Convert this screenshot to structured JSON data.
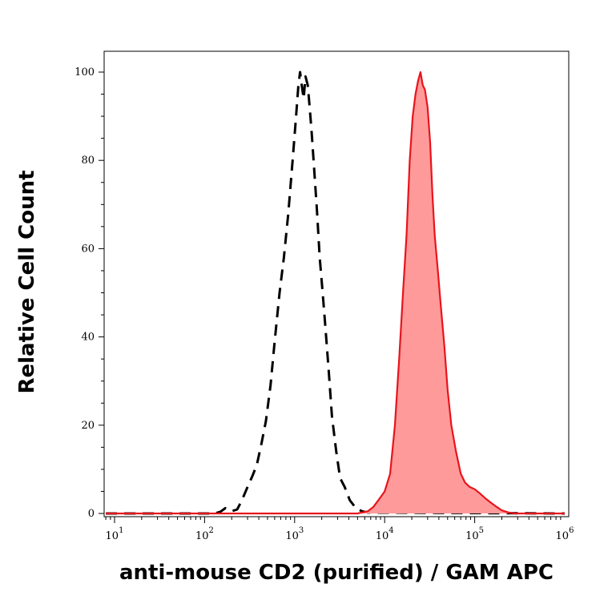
{
  "chart_data": {
    "type": "area",
    "xlabel": "anti-mouse CD2 (purified) / GAM APC",
    "ylabel": "Relative Cell Count",
    "x_scale": "log",
    "xlim": [
      8,
      1000000
    ],
    "ylim": [
      0,
      100
    ],
    "x_ticks": [
      {
        "base": "10",
        "exp": "1"
      },
      {
        "base": "10",
        "exp": "2"
      },
      {
        "base": "10",
        "exp": "3"
      },
      {
        "base": "10",
        "exp": "4"
      },
      {
        "base": "10",
        "exp": "5"
      },
      {
        "base": "10",
        "exp": "6"
      }
    ],
    "y_ticks": [
      "0",
      "20",
      "40",
      "60",
      "80",
      "100"
    ],
    "series": [
      {
        "style": "dashed",
        "color": "#000000",
        "fill": false,
        "points": [
          [
            8,
            0
          ],
          [
            130,
            0
          ],
          [
            150,
            0.4
          ],
          [
            170,
            1.2
          ],
          [
            200,
            0.5
          ],
          [
            230,
            0.9
          ],
          [
            260,
            3
          ],
          [
            300,
            6
          ],
          [
            340,
            8.5
          ],
          [
            380,
            11
          ],
          [
            430,
            16
          ],
          [
            480,
            21
          ],
          [
            540,
            29
          ],
          [
            600,
            39
          ],
          [
            680,
            50
          ],
          [
            760,
            58
          ],
          [
            850,
            68
          ],
          [
            950,
            80
          ],
          [
            1030,
            89
          ],
          [
            1100,
            97
          ],
          [
            1150,
            100
          ],
          [
            1200,
            97
          ],
          [
            1260,
            94
          ],
          [
            1320,
            99
          ],
          [
            1400,
            97
          ],
          [
            1470,
            92
          ],
          [
            1550,
            86
          ],
          [
            1650,
            78
          ],
          [
            1780,
            68
          ],
          [
            1900,
            58
          ],
          [
            2050,
            50
          ],
          [
            2200,
            42
          ],
          [
            2400,
            32
          ],
          [
            2600,
            22
          ],
          [
            2900,
            14
          ],
          [
            3200,
            8
          ],
          [
            3600,
            6
          ],
          [
            4100,
            3
          ],
          [
            4800,
            1.2
          ],
          [
            5600,
            0.5
          ],
          [
            6500,
            0.2
          ],
          [
            1000000,
            0
          ]
        ]
      },
      {
        "style": "solid",
        "color": "#e8141c",
        "fill": true,
        "fill_color": "#ff9a9a",
        "points": [
          [
            8,
            0
          ],
          [
            5000,
            0
          ],
          [
            6500,
            0.5
          ],
          [
            7500,
            1.5
          ],
          [
            8500,
            3
          ],
          [
            10000,
            5
          ],
          [
            11500,
            9
          ],
          [
            13000,
            20
          ],
          [
            14500,
            35
          ],
          [
            16000,
            50
          ],
          [
            17500,
            63
          ],
          [
            19000,
            80
          ],
          [
            20500,
            90
          ],
          [
            22000,
            95
          ],
          [
            23500,
            98
          ],
          [
            25000,
            100
          ],
          [
            26500,
            97
          ],
          [
            28000,
            96
          ],
          [
            30000,
            92
          ],
          [
            32000,
            84
          ],
          [
            34000,
            72
          ],
          [
            36000,
            63
          ],
          [
            39000,
            55
          ],
          [
            42000,
            47
          ],
          [
            46000,
            38
          ],
          [
            50000,
            28
          ],
          [
            55000,
            20
          ],
          [
            62000,
            14
          ],
          [
            70000,
            9
          ],
          [
            78000,
            7
          ],
          [
            88000,
            6
          ],
          [
            100000,
            5.5
          ],
          [
            115000,
            4.5
          ],
          [
            130000,
            3.5
          ],
          [
            150000,
            2.5
          ],
          [
            175000,
            1.5
          ],
          [
            200000,
            0.7
          ],
          [
            240000,
            0.2
          ],
          [
            280000,
            0
          ],
          [
            1000000,
            0
          ]
        ]
      }
    ]
  }
}
